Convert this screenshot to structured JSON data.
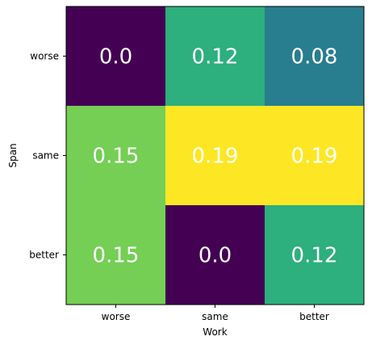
{
  "chart_data": {
    "type": "heatmap",
    "title": "",
    "xlabel": "Work",
    "ylabel": "Span",
    "x_categories": [
      "worse",
      "same",
      "better"
    ],
    "y_categories": [
      "worse",
      "same",
      "better"
    ],
    "values": [
      [
        0.0,
        0.12,
        0.08
      ],
      [
        0.15,
        0.19,
        0.19
      ],
      [
        0.15,
        0.0,
        0.12
      ]
    ],
    "value_labels": [
      [
        "0.0",
        "0.12",
        "0.08"
      ],
      [
        "0.15",
        "0.19",
        "0.19"
      ],
      [
        "0.15",
        "0.0",
        "0.12"
      ]
    ],
    "colormap": "viridis",
    "color_range": [
      0.0,
      0.19
    ],
    "grid": false,
    "legend": "none"
  }
}
